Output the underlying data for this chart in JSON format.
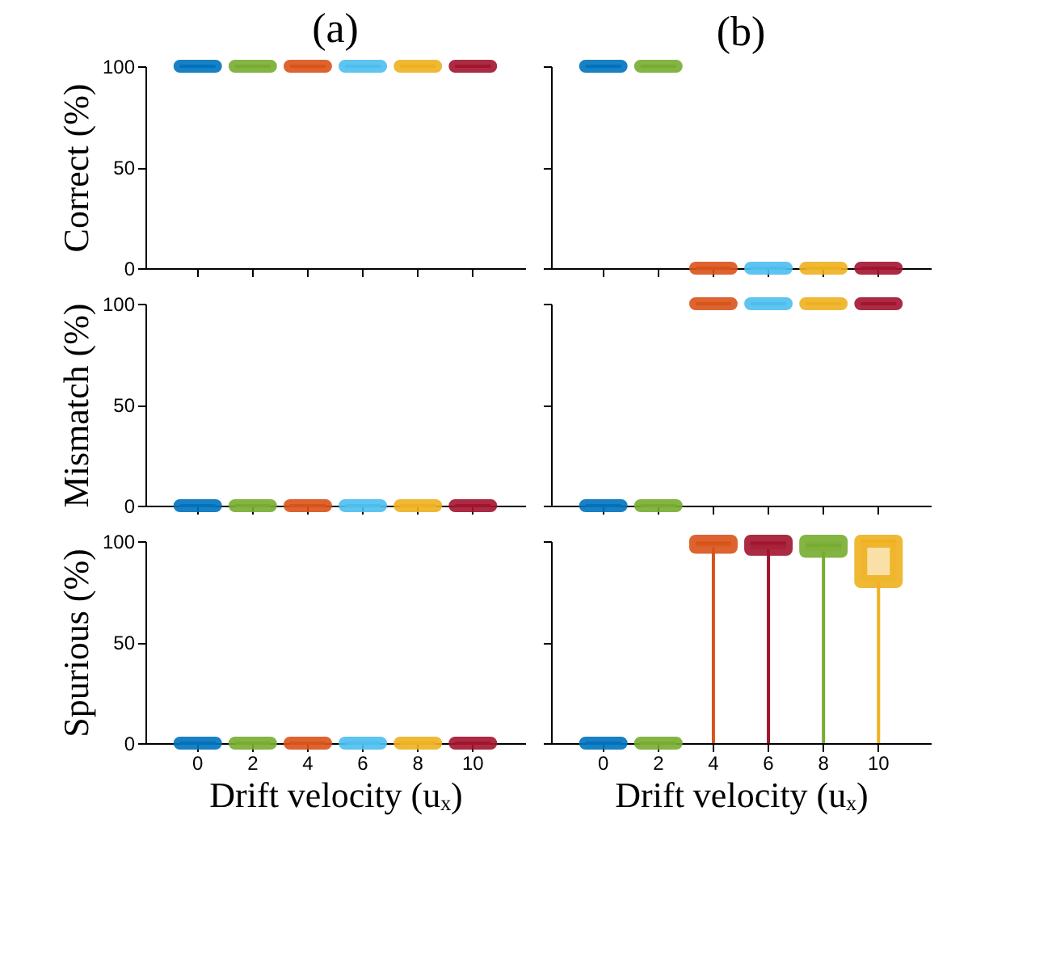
{
  "chart_data": [
    {
      "type": "box",
      "title": "(a)",
      "ylabel": "Correct (%)",
      "categories": [
        "0",
        "2",
        "4",
        "6",
        "8",
        "10"
      ],
      "colors": [
        "#0072bd",
        "#77ac30",
        "#d95319",
        "#4dbeee",
        "#edb120",
        "#a2142f"
      ],
      "ylim": [
        0,
        100
      ],
      "yticks": [
        0,
        50,
        100
      ],
      "tick_labels": "y",
      "boxes": [
        {
          "low": 100,
          "q1": 100,
          "median": 100,
          "q3": 100,
          "high": 100
        },
        {
          "low": 100,
          "q1": 100,
          "median": 100,
          "q3": 100,
          "high": 100
        },
        {
          "low": 100,
          "q1": 100,
          "median": 100,
          "q3": 100,
          "high": 100
        },
        {
          "low": 100,
          "q1": 100,
          "median": 100,
          "q3": 100,
          "high": 100
        },
        {
          "low": 100,
          "q1": 100,
          "median": 100,
          "q3": 100,
          "high": 100
        },
        {
          "low": 100,
          "q1": 100,
          "median": 100,
          "q3": 100,
          "high": 100
        }
      ]
    },
    {
      "type": "box",
      "title": "(b)",
      "categories": [
        "0",
        "2",
        "4",
        "6",
        "8",
        "10"
      ],
      "colors": [
        "#0072bd",
        "#77ac30",
        "#d95319",
        "#4dbeee",
        "#edb120",
        "#a2142f"
      ],
      "ylim": [
        0,
        100
      ],
      "yticks": [
        0,
        50,
        100
      ],
      "tick_labels": false,
      "boxes": [
        {
          "low": 100,
          "q1": 100,
          "median": 100,
          "q3": 100,
          "high": 100
        },
        {
          "low": 100,
          "q1": 100,
          "median": 100,
          "q3": 100,
          "high": 100
        },
        {
          "low": 0,
          "q1": 0,
          "median": 0,
          "q3": 0,
          "high": 0
        },
        {
          "low": 0,
          "q1": 0,
          "median": 0,
          "q3": 0,
          "high": 0
        },
        {
          "low": 0,
          "q1": 0,
          "median": 0,
          "q3": 0,
          "high": 0
        },
        {
          "low": 0,
          "q1": 0,
          "median": 0,
          "q3": 0,
          "high": 0
        }
      ]
    },
    {
      "type": "box",
      "ylabel": "Mismatch (%)",
      "categories": [
        "0",
        "2",
        "4",
        "6",
        "8",
        "10"
      ],
      "colors": [
        "#0072bd",
        "#77ac30",
        "#d95319",
        "#4dbeee",
        "#edb120",
        "#a2142f"
      ],
      "ylim": [
        0,
        100
      ],
      "yticks": [
        0,
        50,
        100
      ],
      "tick_labels": "y",
      "boxes": [
        {
          "low": 0,
          "q1": 0,
          "median": 0,
          "q3": 0,
          "high": 0
        },
        {
          "low": 0,
          "q1": 0,
          "median": 0,
          "q3": 0,
          "high": 0
        },
        {
          "low": 0,
          "q1": 0,
          "median": 0,
          "q3": 0,
          "high": 0
        },
        {
          "low": 0,
          "q1": 0,
          "median": 0,
          "q3": 0,
          "high": 0
        },
        {
          "low": 0,
          "q1": 0,
          "median": 0,
          "q3": 0,
          "high": 0
        },
        {
          "low": 0,
          "q1": 0,
          "median": 0,
          "q3": 0,
          "high": 0
        }
      ]
    },
    {
      "type": "box",
      "categories": [
        "0",
        "2",
        "4",
        "6",
        "8",
        "10"
      ],
      "colors": [
        "#0072bd",
        "#77ac30",
        "#d95319",
        "#4dbeee",
        "#edb120",
        "#a2142f"
      ],
      "ylim": [
        0,
        100
      ],
      "yticks": [
        0,
        50,
        100
      ],
      "tick_labels": false,
      "boxes": [
        {
          "low": 0,
          "q1": 0,
          "median": 0,
          "q3": 0,
          "high": 0
        },
        {
          "low": 0,
          "q1": 0,
          "median": 0,
          "q3": 0,
          "high": 0
        },
        {
          "low": 100,
          "q1": 100,
          "median": 100,
          "q3": 100,
          "high": 100
        },
        {
          "low": 100,
          "q1": 100,
          "median": 100,
          "q3": 100,
          "high": 100
        },
        {
          "low": 100,
          "q1": 100,
          "median": 100,
          "q3": 100,
          "high": 100
        },
        {
          "low": 100,
          "q1": 100,
          "median": 100,
          "q3": 100,
          "high": 100
        }
      ]
    },
    {
      "type": "box",
      "ylabel": "Spurious (%)",
      "xlabel": "Drift velocity (uₓ)",
      "categories": [
        "0",
        "2",
        "4",
        "6",
        "8",
        "10"
      ],
      "colors": [
        "#0072bd",
        "#77ac30",
        "#d95319",
        "#4dbeee",
        "#edb120",
        "#a2142f"
      ],
      "ylim": [
        0,
        100
      ],
      "yticks": [
        0,
        50,
        100
      ],
      "boxes": [
        {
          "low": 0,
          "q1": 0,
          "median": 0,
          "q3": 0,
          "high": 0
        },
        {
          "low": 0,
          "q1": 0,
          "median": 0,
          "q3": 0,
          "high": 0
        },
        {
          "low": 0,
          "q1": 0,
          "median": 0,
          "q3": 0,
          "high": 0
        },
        {
          "low": 0,
          "q1": 0,
          "median": 0,
          "q3": 0,
          "high": 0
        },
        {
          "low": 0,
          "q1": 0,
          "median": 0,
          "q3": 0,
          "high": 0
        },
        {
          "low": 0,
          "q1": 0,
          "median": 0,
          "q3": 0,
          "high": 0
        }
      ]
    },
    {
      "type": "box",
      "xlabel": "Drift velocity (uₓ)",
      "categories": [
        "0",
        "2",
        "4",
        "6",
        "8",
        "10"
      ],
      "colors": [
        "#0072bd",
        "#77ac30",
        "#d95319",
        "#a2142f",
        "#77ac30",
        "#edb120"
      ],
      "ylim": [
        0,
        100
      ],
      "yticks": [
        0,
        50,
        100
      ],
      "tick_labels": "x",
      "boxes": [
        {
          "low": 0,
          "q1": 0,
          "median": 0,
          "q3": 0,
          "high": 0
        },
        {
          "low": 0,
          "q1": 0,
          "median": 0,
          "q3": 0,
          "high": 0
        },
        {
          "low": 0,
          "q1": 97,
          "median": 99,
          "q3": 100,
          "high": 100
        },
        {
          "low": 0,
          "q1": 96,
          "median": 99,
          "q3": 100,
          "high": 100
        },
        {
          "low": 0,
          "q1": 95,
          "median": 98,
          "q3": 100,
          "high": 100
        },
        {
          "low": 0,
          "q1": 80,
          "median": 100,
          "q3": 100,
          "high": 100
        }
      ]
    }
  ]
}
